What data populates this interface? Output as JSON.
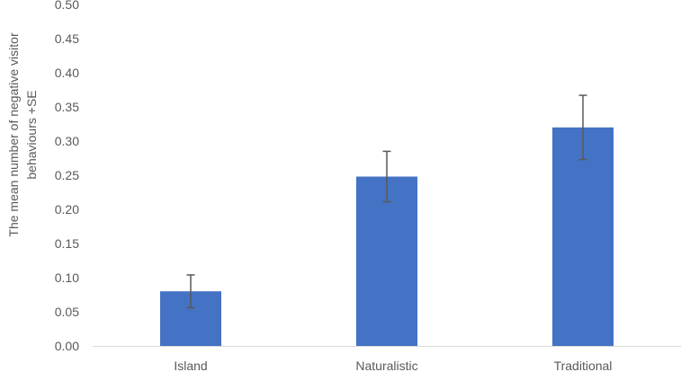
{
  "chart_data": {
    "type": "bar",
    "categories": [
      "Island",
      "Naturalistic",
      "Traditional"
    ],
    "values": [
      0.08,
      0.248,
      0.32
    ],
    "error_bars": [
      0.024,
      0.037,
      0.047
    ],
    "ylabel_lines": [
      "The mean number of negative visitor",
      "behaviours +SE"
    ],
    "xlabel": "",
    "ylim": [
      0,
      0.5
    ],
    "yticks": [
      "0.00",
      "0.05",
      "0.10",
      "0.15",
      "0.20",
      "0.25",
      "0.30",
      "0.35",
      "0.40",
      "0.45",
      "0.50"
    ],
    "grid": false,
    "legend": "none",
    "bar_color": "#4472C4",
    "error_bar_color": "#595959",
    "axis_color": "#D9D9D9",
    "text_color": "#595959"
  }
}
